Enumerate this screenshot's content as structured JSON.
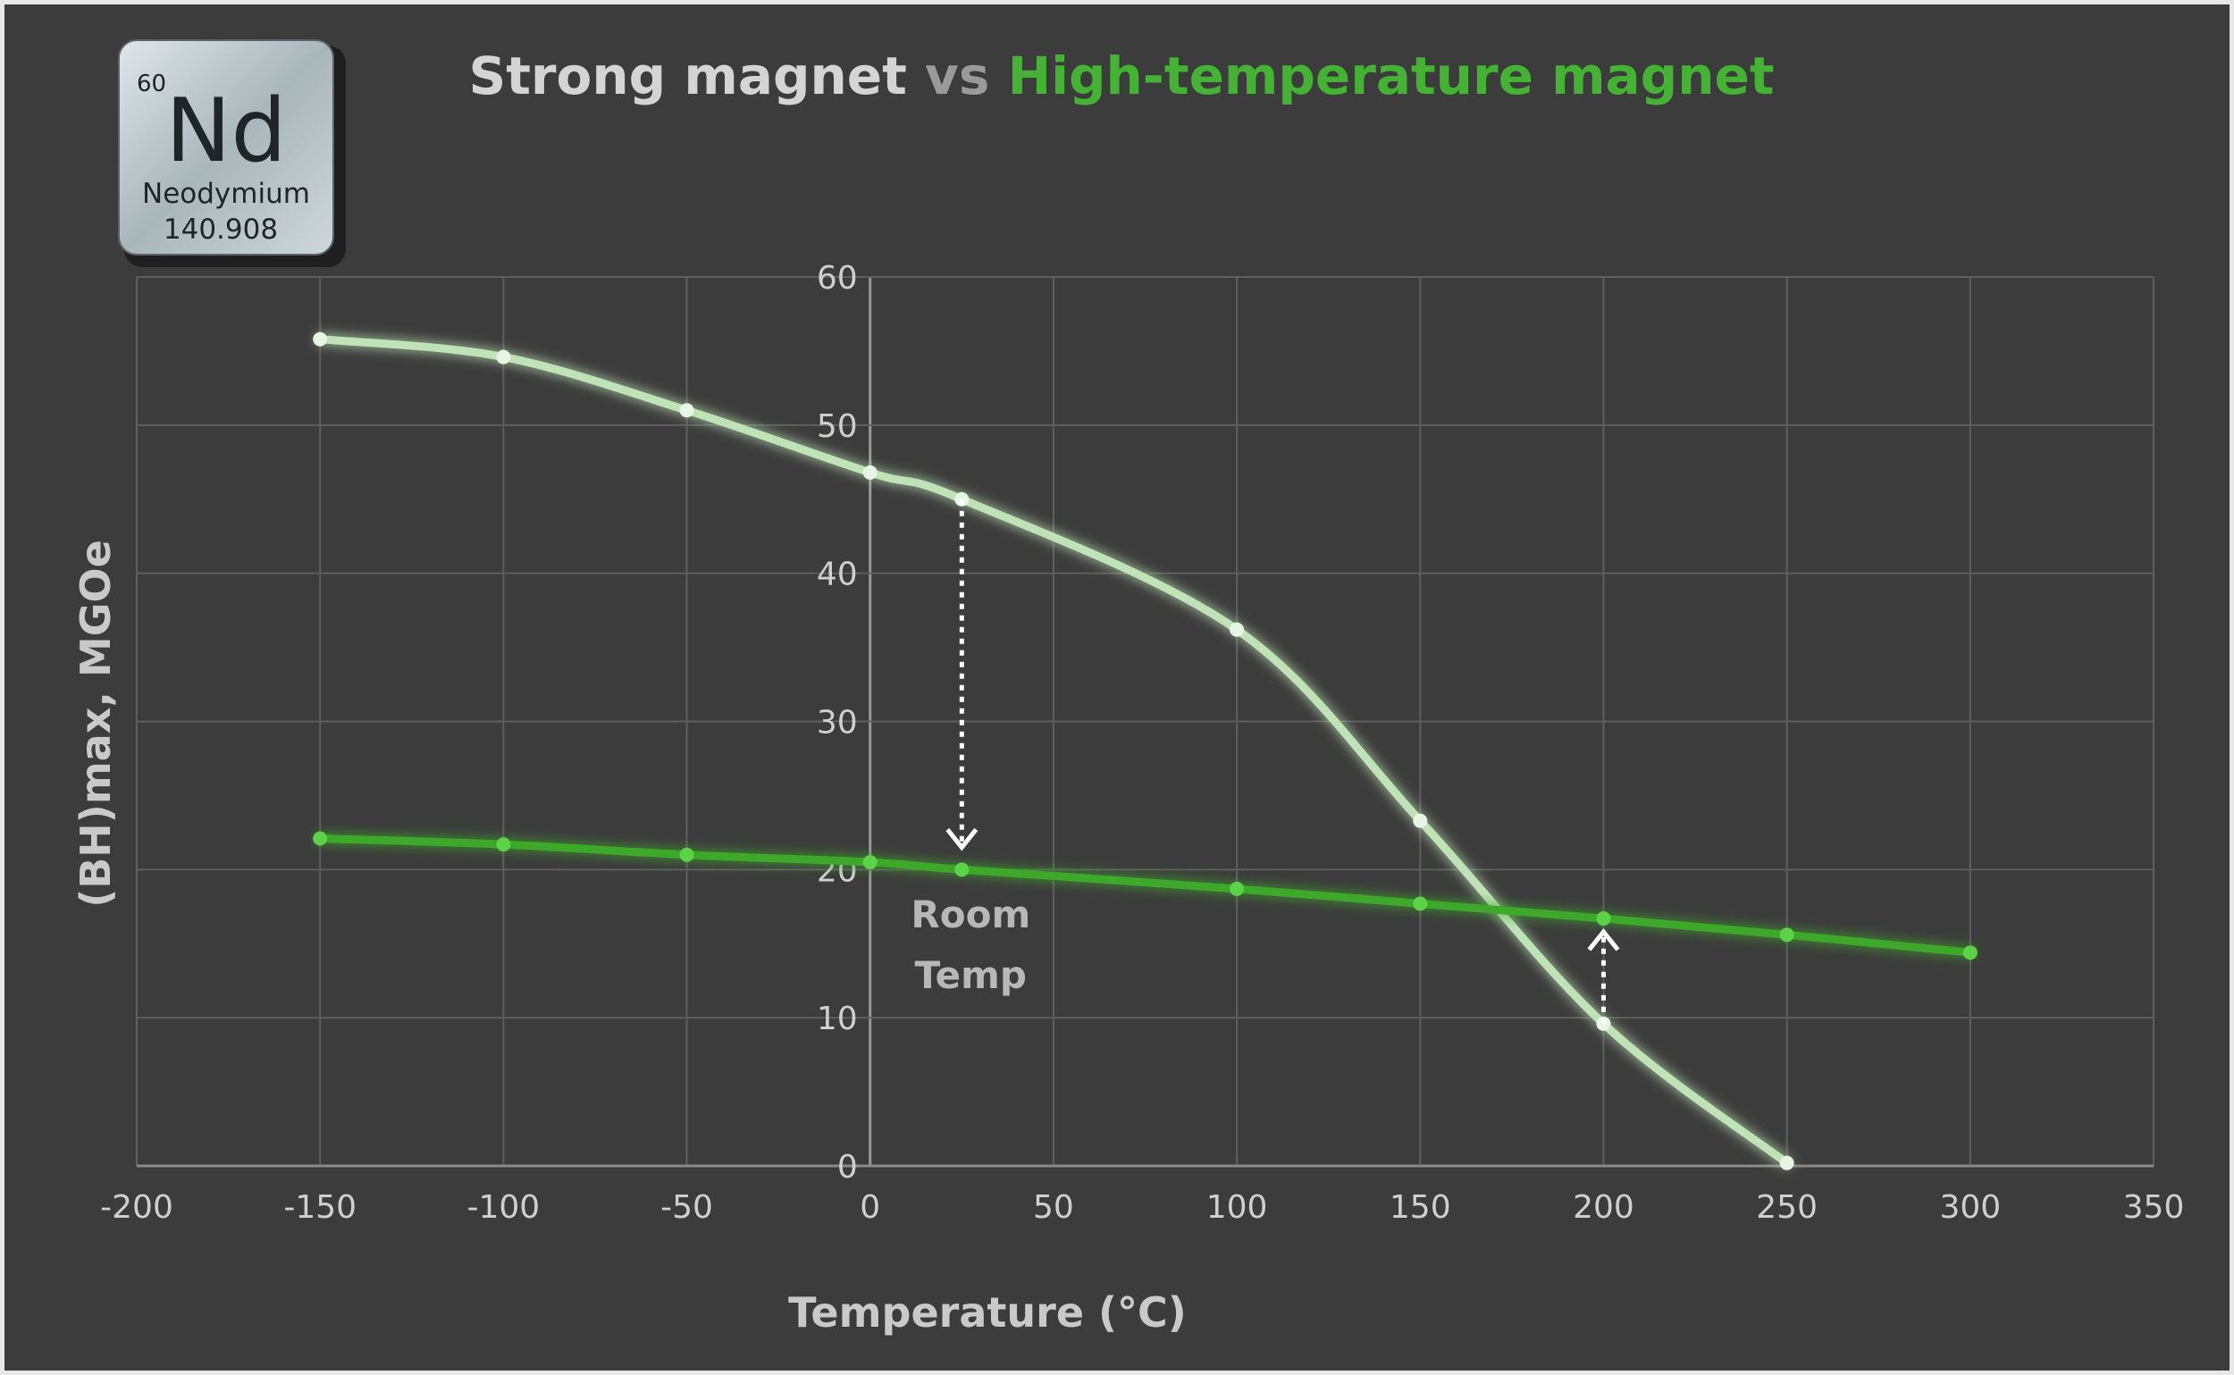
{
  "chart_data": {
    "type": "line",
    "title_parts": [
      {
        "text": "Strong magnet",
        "color": "#d4d4d4"
      },
      {
        "text": " vs ",
        "color": "#9a9a9a"
      },
      {
        "text": "High-temperature magnet",
        "color": "#44b334"
      }
    ],
    "xlabel": "Temperature (°C)",
    "ylabel": "(BH)max, MGOe",
    "xlim": [
      -200,
      350
    ],
    "ylim": [
      0,
      60
    ],
    "x_ticks": [
      -200,
      -150,
      -100,
      -50,
      0,
      50,
      100,
      150,
      200,
      250,
      300,
      350
    ],
    "y_ticks": [
      0,
      10,
      20,
      30,
      40,
      50,
      60
    ],
    "grid": true,
    "series": [
      {
        "color": "#bfe3b6",
        "x": [
          -150,
          -100,
          -50,
          0,
          25,
          100,
          150,
          200,
          250
        ],
        "y": [
          55.8,
          54.6,
          51.0,
          46.8,
          45.0,
          36.2,
          23.3,
          9.6,
          0.2
        ]
      },
      {
        "color": "#3da82c",
        "x": [
          -150,
          -100,
          -50,
          0,
          25,
          100,
          150,
          200,
          250,
          300
        ],
        "y": [
          22.1,
          21.7,
          21.0,
          20.5,
          20.0,
          18.7,
          17.7,
          16.7,
          15.6,
          14.4
        ]
      }
    ],
    "annotations": [
      {
        "text_lines": [
          "Room",
          "Temp"
        ],
        "x": 25
      }
    ],
    "arrows": [
      {
        "x": 25,
        "from_y": 45.0,
        "to_y": 21.5,
        "direction": "down"
      },
      {
        "x": 200,
        "from_y": 9.6,
        "to_y": 15.8,
        "direction": "up"
      }
    ]
  },
  "logo": {
    "atomic_number": "60",
    "symbol": "Nd",
    "name": "Neodymium",
    "mass": "140.908"
  }
}
